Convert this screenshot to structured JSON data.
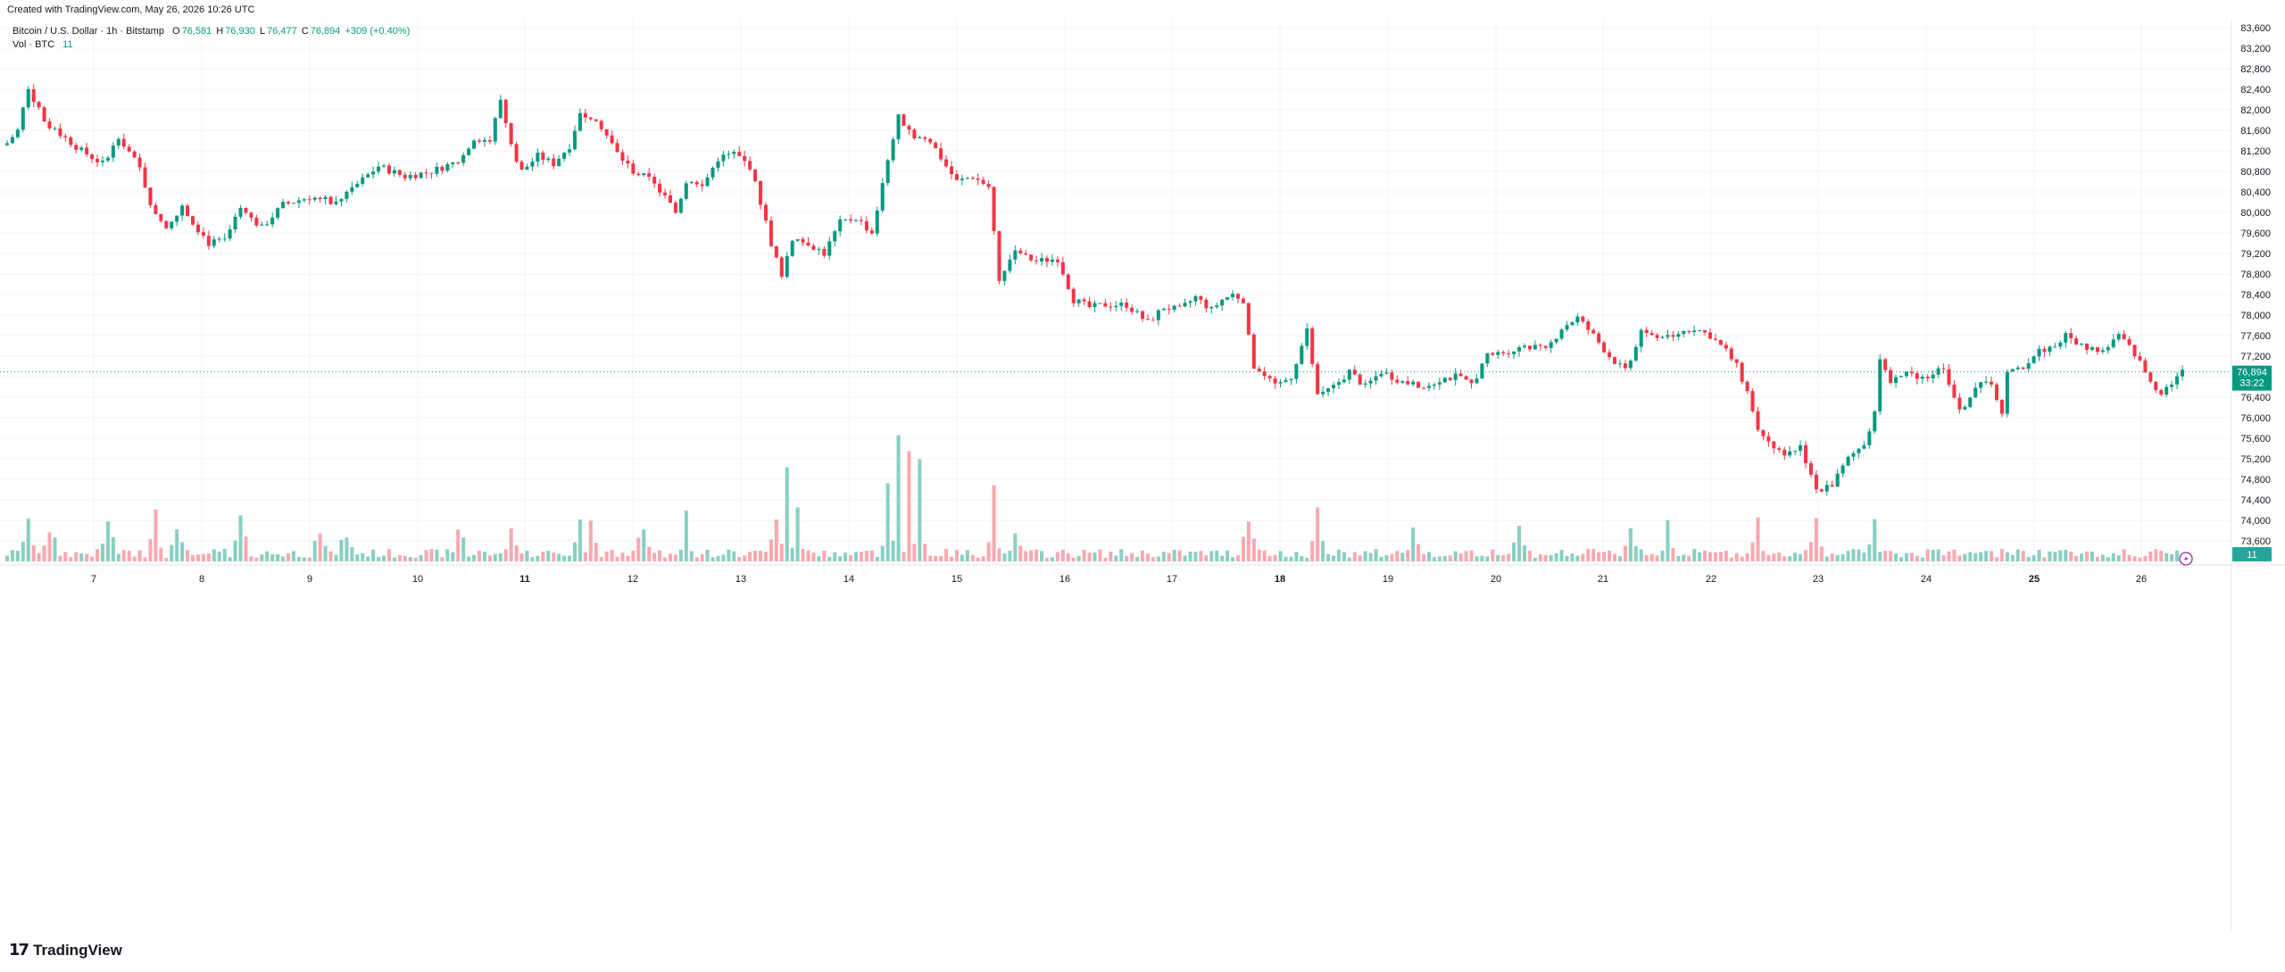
{
  "header": {
    "caption": "Created with TradingView.com, May 26, 2026 10:26 UTC"
  },
  "legend": {
    "symbol": "Bitcoin / U.S. Dollar · 1h · Bitstamp",
    "o_label": "O",
    "o_value": "76,581",
    "h_label": "H",
    "h_value": "76,930",
    "l_label": "L",
    "l_value": "76,477",
    "c_label": "C",
    "c_value": "76,894",
    "change": "+309 (+0.40%)",
    "vol_label": "Vol · BTC",
    "vol_value": "11"
  },
  "price_tag": {
    "price": "76,894",
    "countdown": "33:22"
  },
  "vol_tag": "11",
  "footer": {
    "brand": "TradingView"
  },
  "colors": {
    "up": "#089981",
    "down": "#f23645",
    "vol_up": "#89cfc3",
    "vol_down": "#f7a9b0",
    "grid": "#f0f3fa"
  },
  "chart_data": {
    "type": "candlestick",
    "interval": "1h",
    "x_tick_labels": [
      "7",
      "8",
      "9",
      "10",
      "11",
      "12",
      "13",
      "14",
      "15",
      "16",
      "17",
      "18",
      "19",
      "20",
      "21",
      "22",
      "23",
      "24",
      "25",
      "26"
    ],
    "y_tick_labels": [
      "83,600",
      "83,200",
      "82,800",
      "82,400",
      "82,000",
      "81,600",
      "81,200",
      "80,800",
      "80,400",
      "80,000",
      "79,600",
      "79,200",
      "78,800",
      "78,400",
      "78,000",
      "77,600",
      "77,200",
      "76,800",
      "76,400",
      "76,000",
      "75,600",
      "75,200",
      "74,800",
      "74,400",
      "74,000",
      "73,600"
    ],
    "ylim": [
      73400,
      83800
    ],
    "last_price": 76894,
    "close_path": [
      [
        0,
        81350
      ],
      [
        2,
        81600
      ],
      [
        4,
        82450
      ],
      [
        7,
        81750
      ],
      [
        11,
        81450
      ],
      [
        14,
        81200
      ],
      [
        18,
        80950
      ],
      [
        21,
        81500
      ],
      [
        25,
        80850
      ],
      [
        27,
        80200
      ],
      [
        30,
        79650
      ],
      [
        33,
        80100
      ],
      [
        38,
        79400
      ],
      [
        41,
        79450
      ],
      [
        44,
        80050
      ],
      [
        48,
        79700
      ],
      [
        52,
        80150
      ],
      [
        57,
        80300
      ],
      [
        62,
        80200
      ],
      [
        66,
        80550
      ],
      [
        70,
        80900
      ],
      [
        75,
        80700
      ],
      [
        80,
        80800
      ],
      [
        85,
        81000
      ],
      [
        88,
        81450
      ],
      [
        91,
        81400
      ],
      [
        93,
        82200
      ],
      [
        95,
        81300
      ],
      [
        97,
        80800
      ],
      [
        100,
        81100
      ],
      [
        103,
        80950
      ],
      [
        106,
        81300
      ],
      [
        108,
        81950
      ],
      [
        111,
        81850
      ],
      [
        115,
        81150
      ],
      [
        118,
        80800
      ],
      [
        121,
        80650
      ],
      [
        124,
        80300
      ],
      [
        126,
        80000
      ],
      [
        128,
        80600
      ],
      [
        131,
        80500
      ],
      [
        134,
        81050
      ],
      [
        137,
        81150
      ],
      [
        140,
        80900
      ],
      [
        142,
        80200
      ],
      [
        144,
        79400
      ],
      [
        146,
        78800
      ],
      [
        148,
        79500
      ],
      [
        151,
        79400
      ],
      [
        154,
        79200
      ],
      [
        157,
        79800
      ],
      [
        160,
        79900
      ],
      [
        163,
        79600
      ],
      [
        166,
        81000
      ],
      [
        168,
        81850
      ],
      [
        171,
        81500
      ],
      [
        174,
        81400
      ],
      [
        177,
        80900
      ],
      [
        179,
        80600
      ],
      [
        182,
        80700
      ],
      [
        185,
        80500
      ],
      [
        187,
        78650
      ],
      [
        190,
        79200
      ],
      [
        194,
        79050
      ],
      [
        198,
        79100
      ],
      [
        201,
        78300
      ],
      [
        204,
        78150
      ],
      [
        207,
        78200
      ],
      [
        211,
        78200
      ],
      [
        215,
        77850
      ],
      [
        218,
        78150
      ],
      [
        221,
        78100
      ],
      [
        224,
        78350
      ],
      [
        227,
        78100
      ],
      [
        229,
        78300
      ],
      [
        231,
        78400
      ],
      [
        233,
        78300
      ],
      [
        235,
        77000
      ],
      [
        239,
        76600
      ],
      [
        242,
        76800
      ],
      [
        245,
        77700
      ],
      [
        247,
        76400
      ],
      [
        250,
        76600
      ],
      [
        253,
        76900
      ],
      [
        256,
        76600
      ],
      [
        259,
        76900
      ],
      [
        263,
        76700
      ],
      [
        267,
        76600
      ],
      [
        270,
        76750
      ],
      [
        273,
        76800
      ],
      [
        276,
        76650
      ],
      [
        279,
        77200
      ],
      [
        283,
        77300
      ],
      [
        287,
        77400
      ],
      [
        290,
        77300
      ],
      [
        293,
        77750
      ],
      [
        296,
        77950
      ],
      [
        299,
        77600
      ],
      [
        302,
        77200
      ],
      [
        305,
        76900
      ],
      [
        308,
        77700
      ],
      [
        311,
        77550
      ],
      [
        315,
        77650
      ],
      [
        318,
        77750
      ],
      [
        321,
        77600
      ],
      [
        324,
        77300
      ],
      [
        326,
        77000
      ],
      [
        328,
        76500
      ],
      [
        330,
        75800
      ],
      [
        332,
        75600
      ],
      [
        335,
        75200
      ],
      [
        338,
        75450
      ],
      [
        341,
        74600
      ],
      [
        344,
        74700
      ],
      [
        347,
        75200
      ],
      [
        350,
        75500
      ],
      [
        352,
        76100
      ],
      [
        353,
        77200
      ],
      [
        355,
        76700
      ],
      [
        358,
        76850
      ],
      [
        362,
        76800
      ],
      [
        365,
        77000
      ],
      [
        368,
        76100
      ],
      [
        371,
        76600
      ],
      [
        374,
        76700
      ],
      [
        376,
        76050
      ],
      [
        377,
        76850
      ],
      [
        380,
        77000
      ],
      [
        383,
        77300
      ],
      [
        386,
        77400
      ],
      [
        388,
        77600
      ],
      [
        391,
        77400
      ],
      [
        395,
        77300
      ],
      [
        398,
        77600
      ],
      [
        401,
        77250
      ],
      [
        404,
        76700
      ],
      [
        406,
        76500
      ],
      [
        408,
        76700
      ],
      [
        410,
        76894
      ]
    ],
    "volume_spikes": [
      [
        -1,
        0.05
      ],
      [
        4,
        0.62
      ],
      [
        8,
        0.28
      ],
      [
        19,
        0.55
      ],
      [
        28,
        0.85
      ],
      [
        32,
        0.35
      ],
      [
        44,
        0.7
      ],
      [
        59,
        0.25
      ],
      [
        64,
        0.15
      ],
      [
        85,
        0.35
      ],
      [
        95,
        0.38
      ],
      [
        108,
        0.6
      ],
      [
        110,
        0.57
      ],
      [
        120,
        0.35
      ],
      [
        128,
        0.82
      ],
      [
        145,
        0.6
      ],
      [
        147,
        1.9
      ],
      [
        149,
        0.9
      ],
      [
        166,
        1.5
      ],
      [
        168,
        2.7
      ],
      [
        170,
        2.3
      ],
      [
        172,
        2.1
      ],
      [
        186,
        1.45
      ],
      [
        190,
        0.25
      ],
      [
        234,
        0.55
      ],
      [
        247,
        0.9
      ],
      [
        265,
        0.4
      ],
      [
        285,
        0.44
      ],
      [
        306,
        0.38
      ],
      [
        313,
        0.58
      ],
      [
        330,
        0.65
      ],
      [
        341,
        0.63
      ],
      [
        352,
        0.61
      ]
    ]
  }
}
